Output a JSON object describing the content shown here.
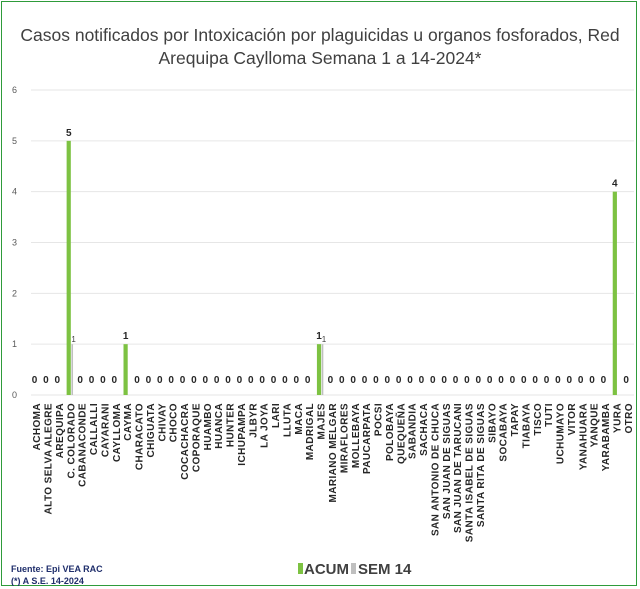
{
  "chart_data": {
    "type": "bar",
    "title": "Casos notificados por Intoxicación por plaguicidas u organos fosforados, Red Arequipa Caylloma Semana 1 a 14-2024*",
    "title_lines": [
      "Casos notificados por Intoxicación por plaguicidas u organos fosforados, Red",
      "Arequipa Caylloma Semana 1 a 14-2024*"
    ],
    "ylim": [
      0,
      6
    ],
    "yticks": [
      0,
      1,
      2,
      3,
      4,
      5,
      6
    ],
    "grid": true,
    "legend_position": "bottom",
    "categories": [
      "ACHOMA",
      "ALTO SELVA ALEGRE",
      "AREQUIPA",
      "C. COLORADO",
      "CABANACONDE",
      "CALLALLI",
      "CAYARANI",
      "CAYLLOMA",
      "CAYMA",
      "CHARACATO",
      "CHIGUATA",
      "CHIVAY",
      "CHOCO",
      "COCACHACRA",
      "COPORAQUE",
      "HUAMBO",
      "HUANCA",
      "HUNTER",
      "ICHUPAMPA",
      "JLBYR",
      "LA JOYA",
      "LARI",
      "LLUTA",
      "MACA",
      "MADRIGAL",
      "MAJES",
      "MARIANO MELGAR",
      "MIRAFLORES",
      "MOLLEBAYA",
      "PAUCARPATA",
      "POCSI",
      "POLOBAYA",
      "QUEQUEÑA",
      "SABANDIA",
      "SACHACA",
      "SAN ANTONIO DE CHUCA",
      "SAN JUAN DE SIGUAS",
      "SAN JUAN DE TARUCANI",
      "SANTA ISABEL DE SIGUAS",
      "SANTA RITA DE SIGUAS",
      "SIBAYO",
      "SOCABAYA",
      "TAPAY",
      "TIABAYA",
      "TISCO",
      "TUTI",
      "UCHUMAYO",
      "VITOR",
      "YANAHUARA",
      "YANQUE",
      "YARABAMBA",
      "YURA",
      "OTRO"
    ],
    "series": [
      {
        "name": "ACUM",
        "color": "#7dc242",
        "values": [
          0,
          0,
          0,
          5,
          0,
          0,
          0,
          0,
          1,
          0,
          0,
          0,
          0,
          0,
          0,
          0,
          0,
          0,
          0,
          0,
          0,
          0,
          0,
          0,
          0,
          1,
          0,
          0,
          0,
          0,
          0,
          0,
          0,
          0,
          0,
          0,
          0,
          0,
          0,
          0,
          0,
          0,
          0,
          0,
          0,
          0,
          0,
          0,
          0,
          0,
          0,
          4,
          0
        ]
      },
      {
        "name": "SEM 14",
        "color": "#bfbfbf",
        "values": [
          null,
          null,
          null,
          1,
          null,
          null,
          null,
          null,
          null,
          null,
          null,
          null,
          null,
          null,
          null,
          null,
          null,
          null,
          null,
          null,
          null,
          null,
          null,
          null,
          null,
          1,
          null,
          null,
          null,
          null,
          null,
          null,
          null,
          null,
          null,
          null,
          null,
          null,
          null,
          null,
          null,
          null,
          null,
          null,
          null,
          null,
          null,
          null,
          null,
          null,
          null,
          null,
          null
        ]
      }
    ],
    "acum_labels": [
      "0",
      "0",
      "0",
      "5",
      "0",
      "0",
      "0",
      "0",
      "1",
      "0",
      "0",
      "0",
      "0",
      "0",
      "0",
      "0",
      "0",
      "0",
      "0",
      "0",
      "0",
      "0",
      "0",
      "0",
      "0",
      "1",
      "0",
      "0",
      "0",
      "0",
      "0",
      "0",
      "0",
      "0",
      "0",
      "0",
      "0",
      "0",
      "0",
      "0",
      "0",
      "0",
      "0",
      "0",
      "0",
      "0",
      "0",
      "0",
      "0",
      "0",
      "0",
      "4",
      "0"
    ],
    "sem_labels": [
      "",
      "",
      "",
      "1",
      "",
      "",
      "",
      "",
      "",
      "",
      "",
      "",
      "",
      "",
      "",
      "",
      "",
      "",
      "",
      "",
      "",
      "",
      "",
      "",
      "",
      "1",
      "",
      "",
      "",
      "",
      "",
      "",
      "",
      "",
      "",
      "",
      "",
      "",
      "",
      "",
      "",
      "",
      "",
      "",
      "",
      "",
      "",
      "",
      "",
      "",
      "",
      "",
      ""
    ],
    "legend": [
      {
        "label": "ACUM",
        "color": "#7dc242"
      },
      {
        "label": "SEM 14",
        "color": "#bfbfbf"
      }
    ],
    "source_lines": [
      "Fuente: Epi VEA RAC",
      "(*) A S.E. 14-2024"
    ]
  }
}
